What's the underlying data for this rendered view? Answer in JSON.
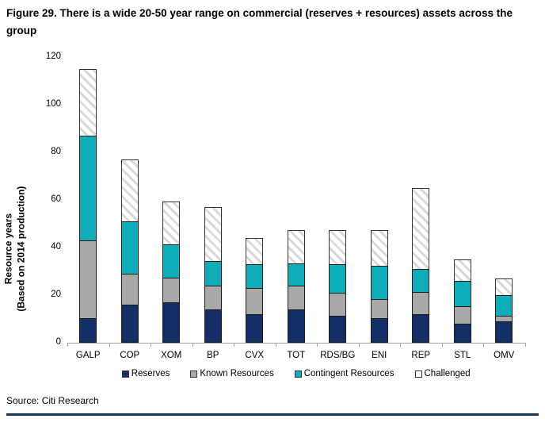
{
  "title": "Figure 29. There is a wide 20-50 year range on commercial (reserves + resources) assets across the group",
  "source": "Source: Citi Research",
  "colors": {
    "reserves": "#132f66",
    "known_resources": "#a9a9a9",
    "contingent_resources": "#0fadb8",
    "challenged_stripe": "#d9d9d9",
    "axis_line": "#a0a0a0",
    "bottom_rule": "#17365d"
  },
  "chart_data": {
    "type": "bar",
    "stacked": true,
    "title": "",
    "ylabel_line1": "Resource years",
    "ylabel_line2": "(Based on 2014 production)",
    "xlabel": "",
    "ylim": [
      0,
      120
    ],
    "ytick_step": 20,
    "grid": false,
    "legend_position": "bottom",
    "categories": [
      "GALP",
      "COP",
      "XOM",
      "BP",
      "CVX",
      "TOT",
      "RDS/BG",
      "ENI",
      "REP",
      "STL",
      "OMV"
    ],
    "series": [
      {
        "name": "Reserves",
        "fill": "#132f66",
        "values": [
          10.5,
          16,
          17,
          14,
          12,
          14,
          11.5,
          10.5,
          12,
          8,
          9.0
        ]
      },
      {
        "name": "Known Resources",
        "fill": "#a9a9a9",
        "values": [
          32.5,
          13,
          10.5,
          10,
          11,
          10,
          9.5,
          8,
          9.5,
          7.5,
          2.5
        ]
      },
      {
        "name": "Contingent Resources",
        "fill": "#0fadb8",
        "values": [
          44,
          22,
          14,
          10.5,
          10,
          9.5,
          12,
          14,
          9.5,
          10.5,
          8.5
        ]
      },
      {
        "name": "Challenged",
        "fill": "hatch",
        "values": [
          28,
          26,
          18,
          22.5,
          11,
          14,
          14.5,
          15,
          34,
          9,
          7.0
        ]
      }
    ],
    "totals": [
      115,
      77,
      59.5,
      57,
      44,
      47.5,
      47.5,
      47.5,
      65,
      35,
      27
    ]
  }
}
